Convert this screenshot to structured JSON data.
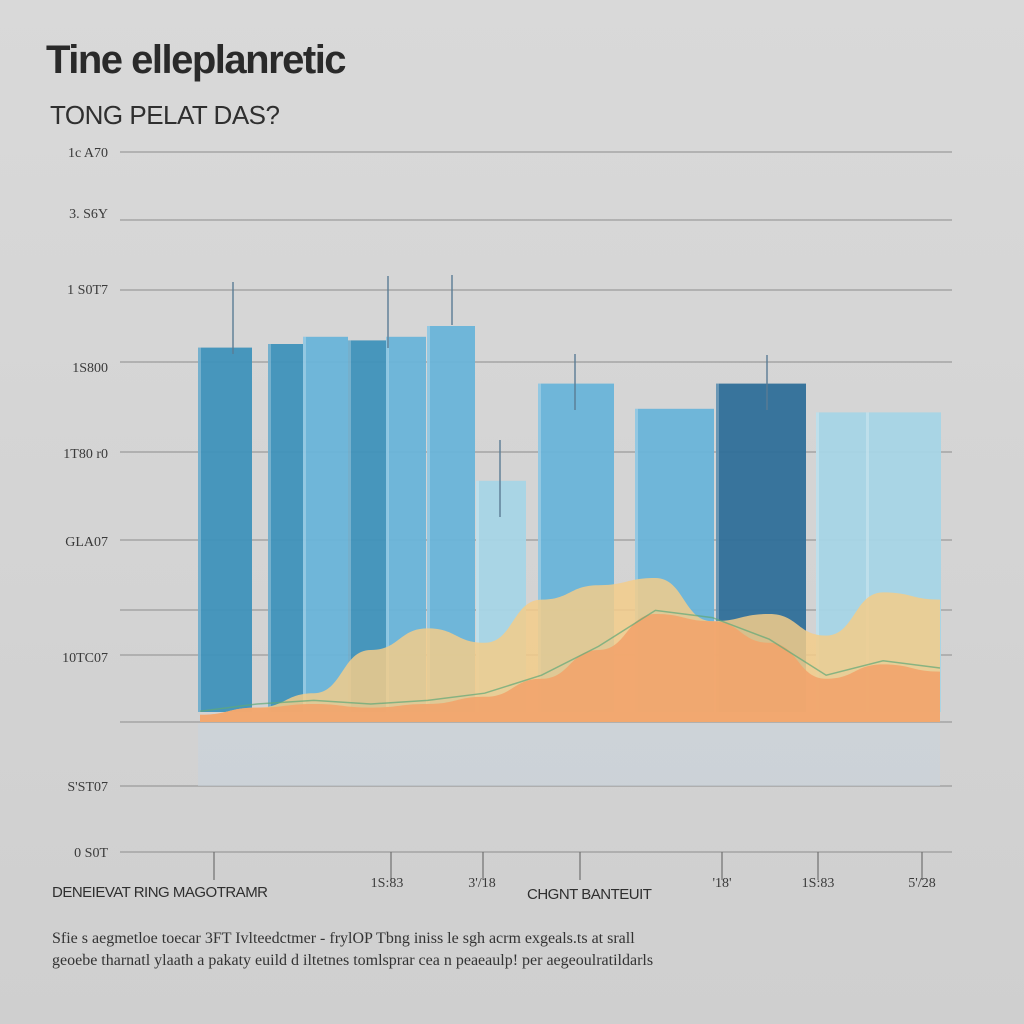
{
  "title": "Tine elleplanretic",
  "subtitle": "TONG PELAT DAS?",
  "caption": {
    "line1": "Sfie s aegmetloe toecar 3FT Ivlteedctmer - frylOP Tbng iniss le sgh acrm exgeals.ts at srall",
    "line2": "geoebe tharnatl ylaath a pakaty euild d iltetnes tomlsprar cea n peaeaulp! per aegeoulratildarls"
  },
  "colors": {
    "bar_dark": "#2f6f99",
    "bar_mid": "#3f92bb",
    "bar_light": "#69b4d9",
    "bar_pale": "#a7d5e6",
    "area_yellow": "#f3cd8a",
    "area_orange": "#f2a46c",
    "area_green": "#b7cf98",
    "grid": "#9b9b9b",
    "background": "#d6d6d6"
  },
  "chart_data": {
    "type": "bar",
    "ytick_labels": [
      "0 S0T",
      "S'ST07",
      "",
      "10TC07",
      "GLA07",
      "1T80 r0",
      "1S800",
      "1 S0T7",
      "3. S6Y",
      "1c A70"
    ],
    "xtick_labels": [
      "1S:83",
      "3'/18",
      "'18'",
      "1S:83",
      "5'/28"
    ],
    "xlabel_left": "DENEIEVAT RING MAGOTRAMR",
    "xlabel_center": "CHGNT BANTEUIT",
    "ylim": [
      0,
      9
    ],
    "bars": [
      {
        "value": 5.2,
        "shade": "bar_mid"
      },
      {
        "value": 5.25,
        "shade": "bar_mid"
      },
      {
        "value": 5.35,
        "shade": "bar_light"
      },
      {
        "value": 5.3,
        "shade": "bar_mid"
      },
      {
        "value": 5.35,
        "shade": "bar_light"
      },
      {
        "value": 5.5,
        "shade": "bar_light"
      },
      {
        "value": 3.35,
        "shade": "bar_pale"
      },
      {
        "value": 4.7,
        "shade": "bar_light"
      },
      {
        "value": 4.35,
        "shade": "bar_light"
      },
      {
        "value": 4.7,
        "shade": "bar_dark"
      },
      {
        "value": 4.3,
        "shade": "bar_pale"
      },
      {
        "value": 4.3,
        "shade": "bar_pale"
      }
    ],
    "area_yellow": [
      0.1,
      0.2,
      0.4,
      1.0,
      1.3,
      1.1,
      1.7,
      1.9,
      2.0,
      1.4,
      1.5,
      1.2,
      1.8,
      1.7
    ],
    "area_orange": [
      0.1,
      0.2,
      0.25,
      0.2,
      0.25,
      0.35,
      0.6,
      1.0,
      1.5,
      1.4,
      1.1,
      0.6,
      0.8,
      0.7
    ],
    "grid": true,
    "legend": "none"
  }
}
